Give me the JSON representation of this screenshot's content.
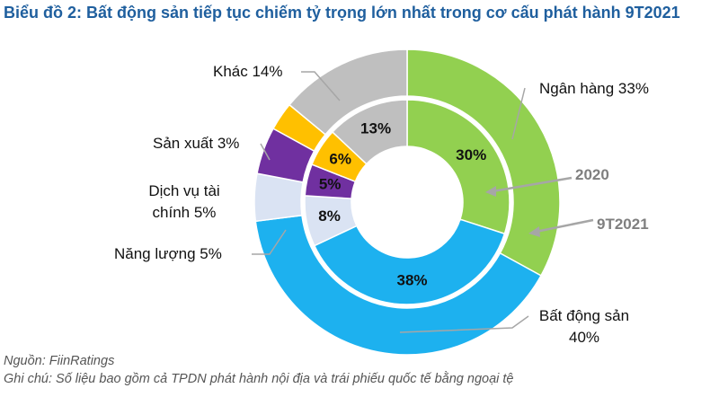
{
  "chart_data": {
    "type": "nested-donut",
    "title": "Biểu đồ 2: Bất động sản tiếp tục chiếm tỷ trọng lớn nhất trong cơ cấu phát hành 9T2021",
    "colors": [
      "#92d050",
      "#1db1ef",
      "#dae3f3",
      "#7030a0",
      "#ffc000",
      "#bfbfbf"
    ],
    "series": [
      {
        "name": "9T2021",
        "values": [
          33,
          40,
          5,
          5,
          3,
          14
        ],
        "value_labels": [
          "Ngân hàng 33%",
          "Bất động sản 40%",
          "Năng lượng 5%",
          "Dịch vụ tài chính 5%",
          "Sản xuất 3%",
          "Khác 14%"
        ]
      },
      {
        "name": "2020",
        "values": [
          30,
          38,
          8,
          5,
          6,
          13
        ],
        "value_labels": [
          "30%",
          "38%",
          "8%",
          "5%",
          "6%",
          "13%"
        ]
      }
    ],
    "source": "Nguồn: FiinRatings",
    "note": "Ghi chú: Số liệu bao gồm cả TPDN phát hành nội địa và trái phiếu quốc tế bằng ngoại tệ"
  }
}
